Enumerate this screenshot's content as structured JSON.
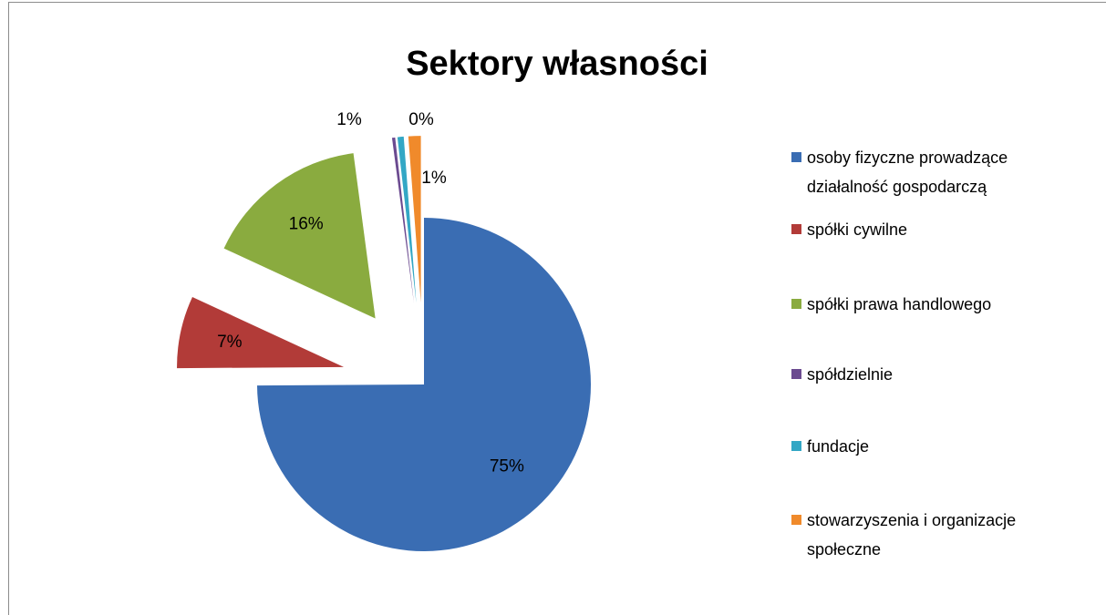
{
  "chart_data": {
    "type": "pie",
    "title": "Sektory własności",
    "categories": [
      "osoby fizyczne prowadzące działalność gospodarczą",
      "spółki cywilne",
      "spółki prawa handlowego",
      "spółdzielnie",
      "fundacje",
      "stowarzyszenia i organizacje społeczne"
    ],
    "values": [
      74.9,
      7,
      16,
      0.3,
      0.6,
      1.2
    ],
    "value_labels": [
      "75%",
      "7%",
      "16%",
      "0%",
      "1%",
      "1%"
    ],
    "colors": [
      "#3a6db3",
      "#b23b38",
      "#8aab3f",
      "#6b4a90",
      "#33a7c5",
      "#f08a2b"
    ],
    "exploded": [
      false,
      true,
      true,
      true,
      true,
      true
    ],
    "legend": "right"
  }
}
